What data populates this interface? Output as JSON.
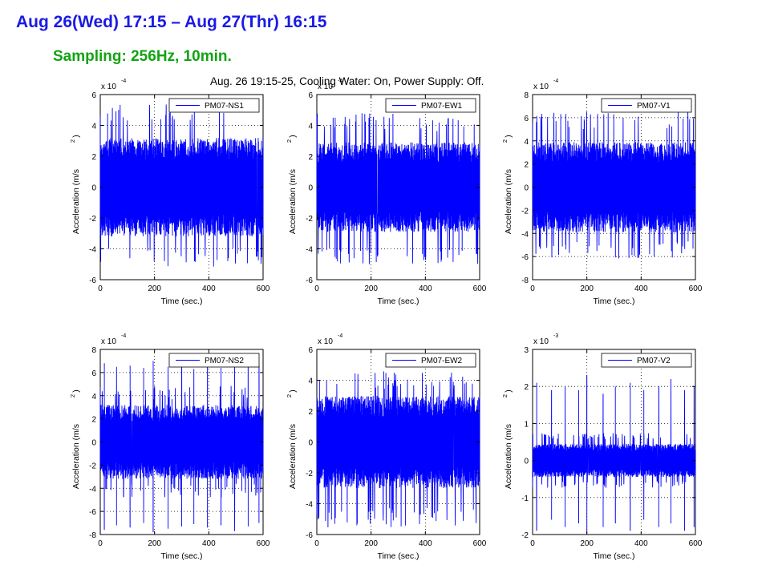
{
  "slide": {
    "title": "Aug 26(Wed) 17:15 – Aug 27(Thr) 16:15",
    "subtitle": "Sampling: 256Hz, 10min.",
    "figure_title": "Aug. 26 19:15-25, Cooling Water: On, Power Supply: Off."
  },
  "colors": {
    "trace": "#0000ff",
    "title": "#1a1ae6",
    "subtitle": "#13a313"
  },
  "chart_data": [
    {
      "type": "line",
      "name": "PM07-NS1",
      "xlabel": "Time (sec.)",
      "ylabel": "Acceleration (m/s",
      "ylabel_superscript": "2",
      "ylabel_suffix": ")",
      "xlim": [
        0,
        600
      ],
      "ylim": [
        -6,
        6
      ],
      "xticks": [
        0,
        200,
        400,
        600
      ],
      "yticks": [
        -6,
        -4,
        -2,
        0,
        2,
        4,
        6
      ],
      "exponent": "x 10",
      "exponent_power": "-4",
      "band": 3.2,
      "peak_hi": 5.6,
      "peak_lo": -5.2,
      "spikes": [],
      "grid": "dotted",
      "legend": "top-right",
      "series": [
        {
          "name": "PM07-NS1"
        }
      ]
    },
    {
      "type": "line",
      "name": "PM07-EW1",
      "xlabel": "Time (sec.)",
      "ylabel": "Acceleration (m/s",
      "ylabel_superscript": "2",
      "ylabel_suffix": ")",
      "xlim": [
        0,
        600
      ],
      "ylim": [
        -6,
        6
      ],
      "xticks": [
        0,
        200,
        400,
        600
      ],
      "yticks": [
        -6,
        -4,
        -2,
        0,
        2,
        4,
        6
      ],
      "exponent": "x 10",
      "exponent_power": "-4",
      "band": 2.9,
      "peak_hi": 4.8,
      "peak_lo": -5.0,
      "spikes": [],
      "grid": "dotted",
      "legend": "top-right",
      "series": [
        {
          "name": "PM07-EW1"
        }
      ]
    },
    {
      "type": "line",
      "name": "PM07-V1",
      "xlabel": "Time (sec.)",
      "ylabel": "Acceleration (m/s",
      "ylabel_superscript": "2",
      "ylabel_suffix": ")",
      "xlim": [
        0,
        600
      ],
      "ylim": [
        -8,
        8
      ],
      "xticks": [
        0,
        200,
        400,
        600
      ],
      "yticks": [
        -8,
        -6,
        -4,
        -2,
        0,
        2,
        4,
        6,
        8
      ],
      "exponent": "x 10",
      "exponent_power": "-4",
      "band": 3.9,
      "peak_hi": 6.6,
      "peak_lo": -6.2,
      "spikes": [],
      "grid": "dotted",
      "legend": "top-right",
      "series": [
        {
          "name": "PM07-V1"
        }
      ]
    },
    {
      "type": "line",
      "name": "PM07-NS2",
      "xlabel": "Time (sec.)",
      "ylabel": "Acceleration (m/s",
      "ylabel_superscript": "2",
      "ylabel_suffix": ")",
      "xlim": [
        0,
        600
      ],
      "ylim": [
        -8,
        8
      ],
      "xticks": [
        0,
        200,
        400,
        600
      ],
      "yticks": [
        -8,
        -6,
        -4,
        -2,
        0,
        2,
        4,
        6,
        8
      ],
      "exponent": "x 10",
      "exponent_power": "-4",
      "band": 3.2,
      "peak_hi": 4.9,
      "peak_lo": -4.8,
      "spikes": [
        {
          "t": 15,
          "hi": 6.8,
          "lo": -7.6
        },
        {
          "t": 60,
          "hi": 6.5,
          "lo": -7.2
        },
        {
          "t": 110,
          "hi": 6.6,
          "lo": -7.4
        },
        {
          "t": 160,
          "hi": 6.4,
          "lo": -7.0
        },
        {
          "t": 195,
          "hi": 7.0,
          "lo": -7.8
        },
        {
          "t": 250,
          "hi": 6.5,
          "lo": -7.5
        },
        {
          "t": 300,
          "hi": 6.8,
          "lo": -7.3
        },
        {
          "t": 345,
          "hi": 6.3,
          "lo": -7.1
        },
        {
          "t": 395,
          "hi": 6.7,
          "lo": -7.4
        },
        {
          "t": 445,
          "hi": 6.4,
          "lo": -7.2
        },
        {
          "t": 495,
          "hi": 6.9,
          "lo": -7.7
        },
        {
          "t": 545,
          "hi": 6.5,
          "lo": -7.3
        },
        {
          "t": 585,
          "hi": 6.6,
          "lo": -7.0
        }
      ],
      "grid": "dotted",
      "legend": "top-right",
      "series": [
        {
          "name": "PM07-NS2"
        }
      ]
    },
    {
      "type": "line",
      "name": "PM07-EW2",
      "xlabel": "Time (sec.)",
      "ylabel": "Acceleration (m/s",
      "ylabel_superscript": "2",
      "ylabel_suffix": ")",
      "xlim": [
        0,
        600
      ],
      "ylim": [
        -6,
        6
      ],
      "xticks": [
        0,
        200,
        400,
        600
      ],
      "yticks": [
        -6,
        -4,
        -2,
        0,
        2,
        4,
        6
      ],
      "exponent": "x 10",
      "exponent_power": "-4",
      "band": 3.0,
      "peak_hi": 4.6,
      "peak_lo": -5.6,
      "spikes": [],
      "grid": "dotted",
      "legend": "top-right",
      "series": [
        {
          "name": "PM07-EW2"
        }
      ]
    },
    {
      "type": "line",
      "name": "PM07-V2",
      "xlabel": "Time (sec.)",
      "ylabel": "Acceleration (m/s",
      "ylabel_superscript": "2",
      "ylabel_suffix": ")",
      "xlim": [
        0,
        600
      ],
      "ylim": [
        -2,
        3
      ],
      "xticks": [
        0,
        200,
        400,
        600
      ],
      "yticks": [
        -2,
        -1,
        0,
        1,
        2,
        3
      ],
      "exponent": "x 10",
      "exponent_power": "-3",
      "band": 0.45,
      "peak_hi": 0.75,
      "peak_lo": -0.75,
      "spikes": [
        {
          "t": 15,
          "hi": 2.1,
          "lo": -1.9
        },
        {
          "t": 70,
          "hi": 1.9,
          "lo": -1.6
        },
        {
          "t": 120,
          "hi": 2.0,
          "lo": -1.8
        },
        {
          "t": 170,
          "hi": 1.9,
          "lo": -1.7
        },
        {
          "t": 200,
          "hi": 2.3,
          "lo": -2.0
        },
        {
          "t": 260,
          "hi": 1.8,
          "lo": -1.8
        },
        {
          "t": 305,
          "hi": 2.0,
          "lo": -1.7
        },
        {
          "t": 360,
          "hi": 2.1,
          "lo": -1.9
        },
        {
          "t": 410,
          "hi": 1.9,
          "lo": -1.6
        },
        {
          "t": 465,
          "hi": 2.0,
          "lo": -1.8
        },
        {
          "t": 510,
          "hi": 2.2,
          "lo": -1.7
        },
        {
          "t": 560,
          "hi": 1.9,
          "lo": -1.9
        },
        {
          "t": 595,
          "hi": 2.0,
          "lo": -1.8
        }
      ],
      "grid": "dotted",
      "legend": "top-right",
      "series": [
        {
          "name": "PM07-V2"
        }
      ]
    }
  ]
}
